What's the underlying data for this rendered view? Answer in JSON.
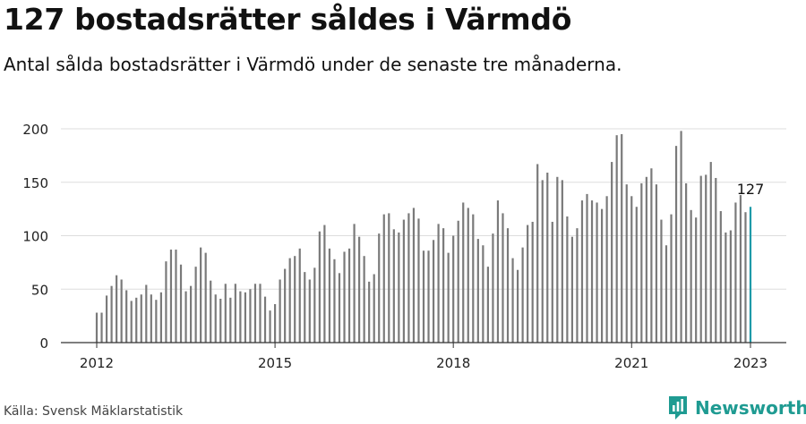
{
  "title": "127 bostadsrätter såldes i Värmdö",
  "subtitle": "Antal sålda bostadsrätter i Värmdö under de senaste tre månaderna.",
  "source": "Källa: Svensk Mäklarstatistik",
  "brand": {
    "name": "Newsworthy",
    "icon": "newsworthy-logo-icon",
    "color": "#1f9b92"
  },
  "colors": {
    "bar": "#7a7a7a",
    "highlight": "#1e9aa8",
    "grid": "#dddddd",
    "axis": "#333333"
  },
  "chart_data": {
    "type": "bar",
    "x_start": "2012-01",
    "frequency": "monthly",
    "ylim": [
      0,
      200
    ],
    "yticks": [
      0,
      50,
      100,
      150,
      200
    ],
    "xtick_labels": [
      "2012",
      "2015",
      "2018",
      "2021",
      "2023"
    ],
    "grid": true,
    "highlight_last": true,
    "last_label": "127",
    "values": [
      28,
      28,
      44,
      53,
      63,
      59,
      49,
      39,
      42,
      45,
      54,
      45,
      40,
      47,
      76,
      87,
      87,
      73,
      48,
      53,
      71,
      89,
      84,
      58,
      45,
      41,
      55,
      42,
      55,
      48,
      47,
      50,
      55,
      55,
      43,
      30,
      36,
      59,
      69,
      79,
      81,
      88,
      66,
      59,
      70,
      104,
      110,
      88,
      78,
      65,
      85,
      88,
      111,
      99,
      81,
      57,
      64,
      102,
      120,
      121,
      106,
      103,
      115,
      121,
      126,
      116,
      86,
      86,
      96,
      111,
      107,
      84,
      100,
      114,
      131,
      126,
      120,
      97,
      91,
      71,
      102,
      133,
      121,
      107,
      79,
      68,
      89,
      110,
      113,
      167,
      152,
      159,
      113,
      155,
      152,
      118,
      99,
      107,
      133,
      139,
      133,
      131,
      125,
      137,
      169,
      194,
      195,
      148,
      137,
      127,
      149,
      155,
      163,
      148,
      115,
      91,
      120,
      184,
      198,
      149,
      124,
      117,
      156,
      157,
      169,
      154,
      123,
      103,
      105,
      131,
      138,
      122,
      127
    ]
  }
}
